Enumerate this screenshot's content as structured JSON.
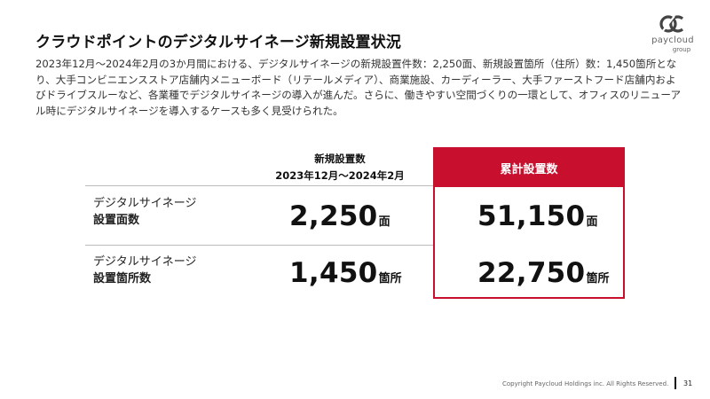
{
  "title": "クラウドポイントのデジタルサイネージ新規設置状況",
  "logo": {
    "name": "paycloud",
    "sub": "group"
  },
  "body": "2023年12月～2024年2月の3か月間における、デジタルサイネージの新規設置件数：2,250面、新規設置箇所（住所）数：1,450箇所となり、大手コンビニエンスストア店舗内メニューボード（リテールメディア）、商業施設、カーディーラー、大手ファーストフード店舗内およびドライブスルーなど、各業種でデジタルサイネージの導入が進んだ。さらに、働きやすい空間づくりの一環として、オフィスのリニューアル時にデジタルサイネージを導入するケースも多く見受けられた。",
  "table": {
    "col_new_line1": "新規設置数",
    "col_new_line2": "2023年12月～2024年2月",
    "col_total": "累計設置数",
    "rows": [
      {
        "label_line1": "デジタルサイネージ",
        "label_line2": "設置面数",
        "new_value": "2,250",
        "total_value": "51,150",
        "unit": "面"
      },
      {
        "label_line1": "デジタルサイネージ",
        "label_line2": "設置箇所数",
        "new_value": "1,450",
        "total_value": "22,750",
        "unit": "箇所"
      }
    ]
  },
  "footer": {
    "copyright": "Copyright Paycloud Holdings inc. All Rights Reserved.",
    "page": "31"
  },
  "colors": {
    "accent": "#c8102e"
  }
}
